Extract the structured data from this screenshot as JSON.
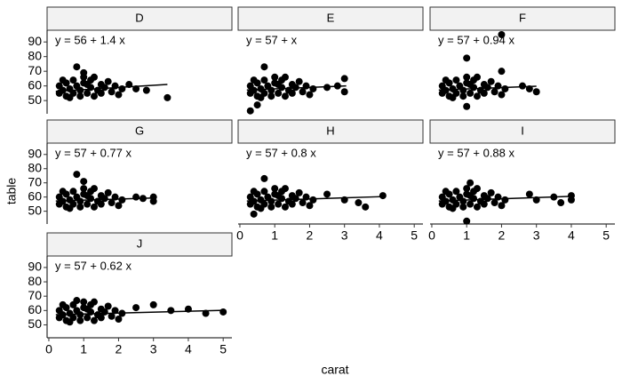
{
  "chart_data": {
    "type": "scatter",
    "x_label": "carat",
    "y_label": "table",
    "color": "#000000",
    "xlim": [
      -0.05,
      5.25
    ],
    "xticks": [
      0,
      1,
      2,
      3,
      4,
      5
    ],
    "ylim": [
      41,
      98
    ],
    "yticks": [
      50,
      60,
      70,
      80,
      90
    ],
    "facets": [
      {
        "label": "D",
        "annotation": "y = 56 + 1.4 x",
        "x": [
          0.3,
          0.3,
          0.4,
          0.5,
          0.5,
          0.6,
          0.7,
          0.7,
          0.8,
          0.9,
          0.9,
          1.0,
          1.0,
          1.1,
          1.2,
          1.2,
          1.3,
          1.4,
          1.5,
          1.5,
          1.6,
          1.7,
          1.8,
          1.9,
          2.0,
          2.1,
          0.4,
          0.6,
          1.1,
          1.3,
          0.8,
          1.0,
          2.3,
          2.5,
          2.8,
          3.4
        ],
        "y": [
          55,
          60,
          57,
          53,
          62,
          58,
          55,
          64,
          60,
          53,
          57,
          62,
          66,
          55,
          59,
          64,
          53,
          57,
          61,
          55,
          59,
          63,
          56,
          60,
          54,
          58,
          64,
          52,
          61,
          66,
          73,
          69,
          61,
          58,
          57,
          52
        ],
        "fit_x": [
          0.2,
          3.4
        ],
        "fit_y": [
          56.3,
          61
        ]
      },
      {
        "label": "E",
        "annotation": "y = 57 +  x",
        "x": [
          0.3,
          0.3,
          0.4,
          0.5,
          0.5,
          0.6,
          0.7,
          0.7,
          0.8,
          0.9,
          0.9,
          1.0,
          1.0,
          1.1,
          1.2,
          1.2,
          1.3,
          1.4,
          1.5,
          1.5,
          1.6,
          1.7,
          1.8,
          1.9,
          2.0,
          2.1,
          0.4,
          0.6,
          1.1,
          1.3,
          0.7,
          0.3,
          2.5,
          2.8,
          3.0,
          3.0,
          0.5
        ],
        "y": [
          55,
          60,
          57,
          53,
          62,
          58,
          55,
          64,
          60,
          53,
          57,
          62,
          66,
          55,
          59,
          64,
          53,
          57,
          61,
          55,
          59,
          63,
          56,
          60,
          54,
          58,
          64,
          52,
          61,
          66,
          73,
          43,
          59,
          60,
          65,
          56,
          47
        ],
        "fit_x": [
          0.2,
          3.05
        ],
        "fit_y": [
          57.2,
          60
        ]
      },
      {
        "label": "F",
        "annotation": "y = 57 + 0.94 x",
        "x": [
          0.3,
          0.3,
          0.4,
          0.5,
          0.5,
          0.6,
          0.7,
          0.7,
          0.8,
          0.9,
          0.9,
          1.0,
          1.0,
          1.1,
          1.2,
          1.2,
          1.3,
          1.4,
          1.5,
          1.5,
          1.6,
          1.7,
          1.8,
          1.9,
          2.0,
          2.1,
          0.4,
          0.6,
          1.1,
          1.3,
          1.0,
          2.0,
          2.6,
          2.8,
          3.0,
          2.0,
          1.0
        ],
        "y": [
          55,
          60,
          57,
          53,
          62,
          58,
          55,
          64,
          60,
          53,
          57,
          62,
          66,
          55,
          59,
          64,
          53,
          57,
          61,
          55,
          59,
          63,
          56,
          60,
          54,
          58,
          64,
          52,
          61,
          66,
          79,
          95,
          60,
          58,
          56,
          70,
          46
        ],
        "fit_x": [
          0.2,
          3.0
        ],
        "fit_y": [
          57.2,
          59.8
        ]
      },
      {
        "label": "G",
        "annotation": "y = 57 + 0.77 x",
        "x": [
          0.3,
          0.3,
          0.4,
          0.5,
          0.5,
          0.6,
          0.7,
          0.7,
          0.8,
          0.9,
          0.9,
          1.0,
          1.0,
          1.1,
          1.2,
          1.2,
          1.3,
          1.4,
          1.5,
          1.5,
          1.6,
          1.7,
          1.8,
          1.9,
          2.0,
          2.1,
          0.4,
          0.6,
          1.1,
          1.3,
          0.8,
          1.0,
          2.5,
          2.7,
          3.0,
          3.0
        ],
        "y": [
          55,
          60,
          57,
          53,
          62,
          58,
          55,
          64,
          60,
          53,
          57,
          62,
          66,
          55,
          59,
          64,
          53,
          57,
          61,
          55,
          59,
          63,
          56,
          60,
          54,
          58,
          64,
          52,
          61,
          66,
          76,
          71,
          60,
          59,
          60,
          57
        ],
        "fit_x": [
          0.2,
          3.0
        ],
        "fit_y": [
          57.2,
          59.3
        ]
      },
      {
        "label": "H",
        "annotation": "y = 57 + 0.8 x",
        "x": [
          0.3,
          0.3,
          0.4,
          0.5,
          0.5,
          0.6,
          0.7,
          0.7,
          0.8,
          0.9,
          0.9,
          1.0,
          1.0,
          1.1,
          1.2,
          1.2,
          1.3,
          1.4,
          1.5,
          1.5,
          1.6,
          1.7,
          1.8,
          1.9,
          2.0,
          2.1,
          0.4,
          0.6,
          1.1,
          1.3,
          0.7,
          3.0,
          3.4,
          3.6,
          4.1,
          2.5,
          0.4
        ],
        "y": [
          55,
          60,
          57,
          53,
          62,
          58,
          55,
          64,
          60,
          53,
          57,
          62,
          66,
          55,
          59,
          64,
          53,
          57,
          61,
          55,
          59,
          63,
          56,
          60,
          54,
          58,
          64,
          52,
          61,
          66,
          73,
          58,
          56,
          53,
          61,
          62,
          48
        ],
        "fit_x": [
          0.2,
          4.1
        ],
        "fit_y": [
          57.2,
          60.3
        ]
      },
      {
        "label": "I",
        "annotation": "y = 57 + 0.88 x",
        "x": [
          0.3,
          0.3,
          0.4,
          0.5,
          0.5,
          0.6,
          0.7,
          0.7,
          0.8,
          0.9,
          0.9,
          1.0,
          1.0,
          1.1,
          1.2,
          1.2,
          1.3,
          1.4,
          1.5,
          1.5,
          1.6,
          1.7,
          1.8,
          1.9,
          2.0,
          2.1,
          0.4,
          0.6,
          1.1,
          1.3,
          1.0,
          1.1,
          3.0,
          3.5,
          3.7,
          4.0,
          4.0,
          2.8
        ],
        "y": [
          55,
          60,
          57,
          53,
          62,
          58,
          55,
          64,
          60,
          53,
          57,
          62,
          66,
          55,
          59,
          64,
          53,
          57,
          61,
          55,
          59,
          63,
          56,
          60,
          54,
          58,
          64,
          52,
          61,
          66,
          43,
          70,
          58,
          60,
          56,
          61,
          58,
          62
        ],
        "fit_x": [
          0.2,
          4.0
        ],
        "fit_y": [
          57.2,
          60.5
        ]
      },
      {
        "label": "J",
        "annotation": "y = 57 + 0.62 x",
        "x": [
          0.3,
          0.3,
          0.4,
          0.5,
          0.5,
          0.6,
          0.7,
          0.7,
          0.8,
          0.9,
          0.9,
          1.0,
          1.0,
          1.1,
          1.2,
          1.2,
          1.3,
          1.4,
          1.5,
          1.5,
          1.6,
          1.7,
          1.8,
          1.9,
          2.0,
          2.1,
          0.4,
          0.6,
          1.1,
          1.3,
          0.8,
          3.0,
          3.5,
          4.0,
          4.5,
          5.0,
          2.5
        ],
        "y": [
          55,
          60,
          57,
          53,
          62,
          58,
          55,
          64,
          60,
          53,
          57,
          62,
          66,
          55,
          59,
          64,
          53,
          57,
          61,
          55,
          59,
          63,
          56,
          60,
          54,
          58,
          64,
          52,
          61,
          66,
          67,
          64,
          60,
          61,
          58,
          59,
          62
        ],
        "fit_x": [
          0.2,
          5.0
        ],
        "fit_y": [
          57.1,
          60.1
        ]
      }
    ]
  }
}
